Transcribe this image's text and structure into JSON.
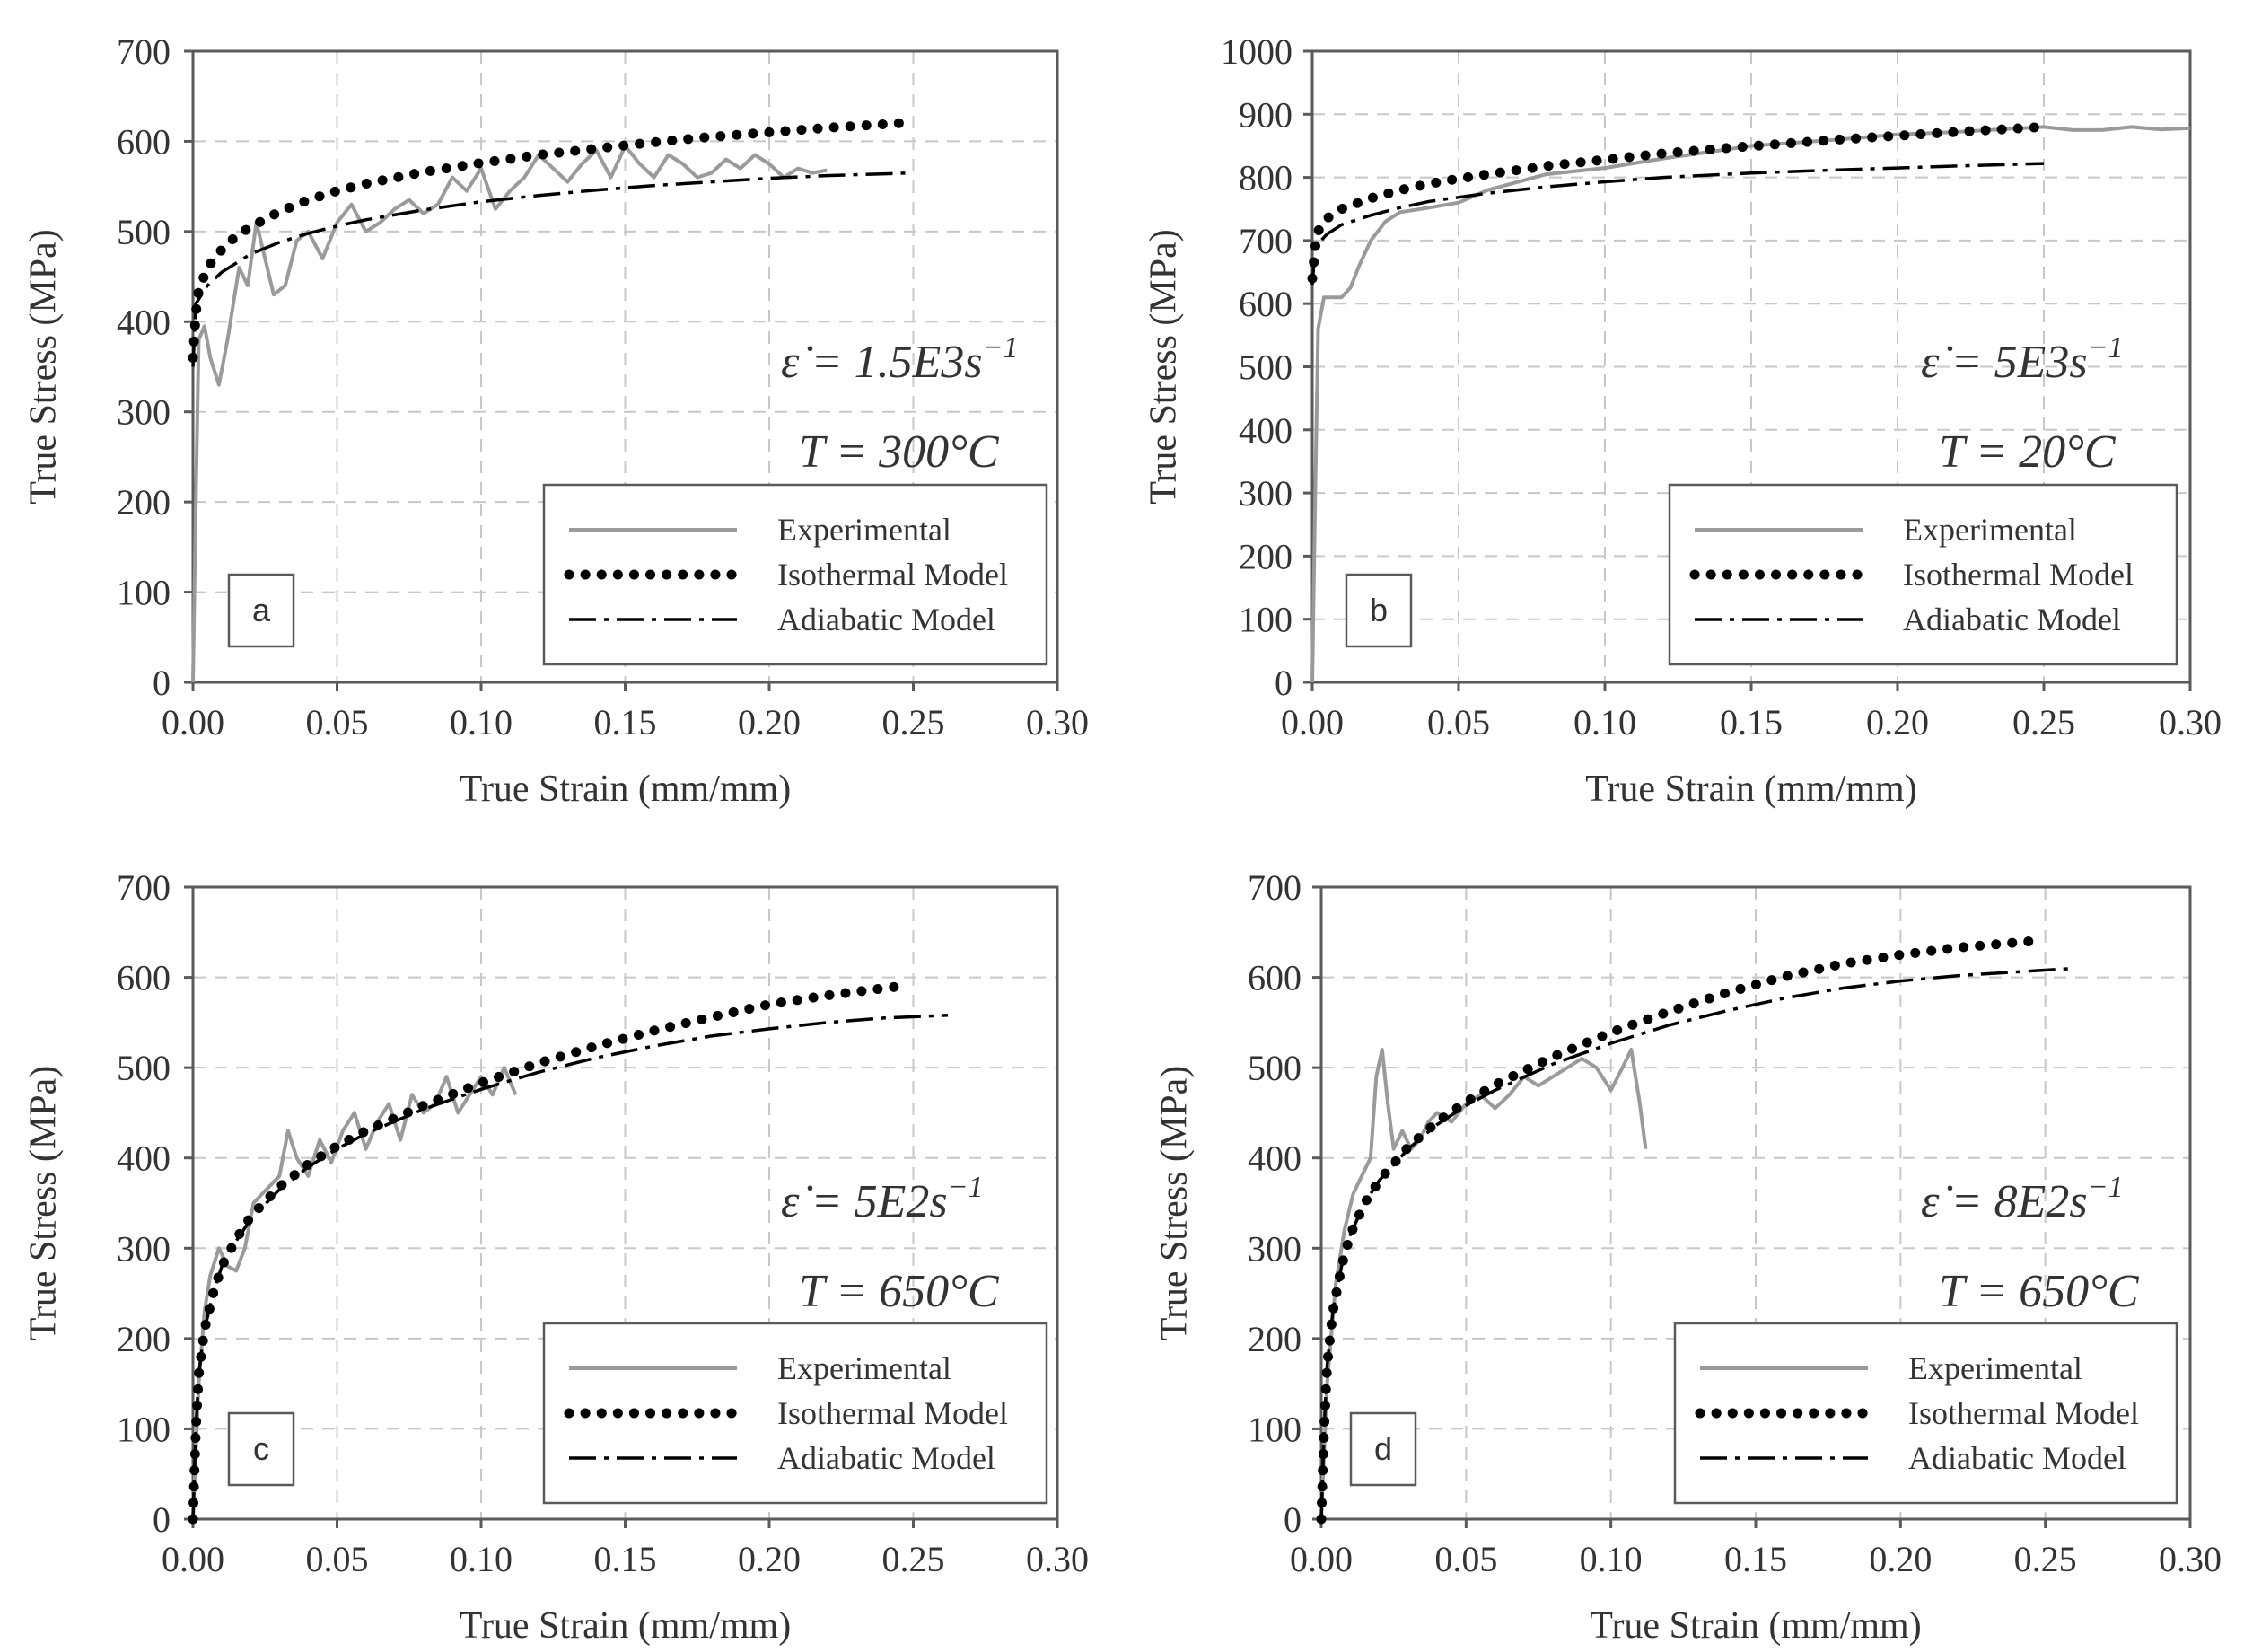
{
  "chart_data": [
    {
      "type": "line",
      "panel_label": "a",
      "xlabel": "True Strain (mm/mm)",
      "ylabel": "True Stress (MPa)",
      "xlim": [
        0,
        0.3
      ],
      "ylim": [
        0,
        700
      ],
      "x_ticks": [
        "0.00",
        "0.05",
        "0.10",
        "0.15",
        "0.20",
        "0.25",
        "0.30"
      ],
      "y_ticks": [
        "0",
        "100",
        "200",
        "300",
        "400",
        "500",
        "600",
        "700"
      ],
      "grid": true,
      "legend_position": "bottom-right",
      "annotation": {
        "rate": "ε̇ = 1.5E3s",
        "rate_sup": "−1",
        "temp": "T = 300°C"
      },
      "series": [
        {
          "name": "Experimental",
          "style": "solid",
          "color": "#9a9a9a",
          "x": [
            0,
            0.001,
            0.002,
            0.004,
            0.006,
            0.009,
            0.012,
            0.016,
            0.019,
            0.022,
            0.025,
            0.028,
            0.032,
            0.036,
            0.04,
            0.045,
            0.05,
            0.055,
            0.06,
            0.065,
            0.07,
            0.075,
            0.08,
            0.085,
            0.09,
            0.095,
            0.1,
            0.105,
            0.11,
            0.115,
            0.12,
            0.125,
            0.13,
            0.135,
            0.14,
            0.145,
            0.15,
            0.155,
            0.16,
            0.165,
            0.17,
            0.175,
            0.18,
            0.185,
            0.19,
            0.195,
            0.2,
            0.205,
            0.21,
            0.215,
            0.22
          ],
          "y": [
            0,
            200,
            380,
            395,
            360,
            330,
            380,
            460,
            440,
            510,
            470,
            430,
            440,
            490,
            500,
            470,
            510,
            530,
            500,
            510,
            525,
            535,
            520,
            530,
            560,
            545,
            570,
            525,
            545,
            560,
            585,
            570,
            555,
            575,
            590,
            560,
            595,
            575,
            560,
            585,
            575,
            560,
            565,
            580,
            570,
            585,
            575,
            560,
            570,
            565,
            568
          ]
        },
        {
          "name": "Isothermal Model",
          "style": "dotted",
          "color": "#000000",
          "x": [
            0,
            0.001,
            0.002,
            0.005,
            0.01,
            0.015,
            0.02,
            0.03,
            0.04,
            0.05,
            0.06,
            0.08,
            0.1,
            0.12,
            0.14,
            0.16,
            0.18,
            0.2,
            0.22,
            0.245
          ],
          "y": [
            360,
            410,
            435,
            460,
            480,
            495,
            505,
            522,
            535,
            545,
            553,
            566,
            576,
            585,
            592,
            599,
            605,
            610,
            615,
            620
          ]
        },
        {
          "name": "Adiabatic Model",
          "style": "dashdot",
          "color": "#000000",
          "x": [
            0,
            0.001,
            0.005,
            0.01,
            0.02,
            0.03,
            0.04,
            0.05,
            0.06,
            0.08,
            0.1,
            0.12,
            0.14,
            0.16,
            0.18,
            0.2,
            0.22,
            0.25
          ],
          "y": [
            350,
            420,
            440,
            455,
            475,
            488,
            498,
            506,
            513,
            524,
            533,
            540,
            546,
            551,
            555,
            559,
            562,
            565
          ]
        }
      ]
    },
    {
      "type": "line",
      "panel_label": "b",
      "xlabel": "True Strain (mm/mm)",
      "ylabel": "True Stress (MPa)",
      "xlim": [
        0,
        0.3
      ],
      "ylim": [
        0,
        1000
      ],
      "x_ticks": [
        "0.00",
        "0.05",
        "0.10",
        "0.15",
        "0.20",
        "0.25",
        "0.30"
      ],
      "y_ticks": [
        "0",
        "100",
        "200",
        "300",
        "400",
        "500",
        "600",
        "700",
        "800",
        "900",
        "1000"
      ],
      "grid": true,
      "legend_position": "bottom-right",
      "annotation": {
        "rate": "ε̇ = 5E3s",
        "rate_sup": "−1",
        "temp": "T = 20°C"
      },
      "series": [
        {
          "name": "Experimental",
          "style": "solid",
          "color": "#9a9a9a",
          "x": [
            0,
            0.001,
            0.002,
            0.004,
            0.007,
            0.01,
            0.013,
            0.016,
            0.02,
            0.025,
            0.03,
            0.04,
            0.05,
            0.06,
            0.08,
            0.1,
            0.12,
            0.15,
            0.18,
            0.2,
            0.22,
            0.25,
            0.26,
            0.27,
            0.28,
            0.29,
            0.3
          ],
          "y": [
            0,
            300,
            560,
            610,
            610,
            610,
            625,
            660,
            700,
            730,
            745,
            752,
            760,
            780,
            805,
            815,
            830,
            850,
            860,
            868,
            872,
            880,
            875,
            875,
            880,
            876,
            878
          ]
        },
        {
          "name": "Isothermal Model",
          "style": "dotted",
          "color": "#000000",
          "x": [
            0,
            0.001,
            0.002,
            0.005,
            0.01,
            0.02,
            0.03,
            0.04,
            0.05,
            0.06,
            0.08,
            0.1,
            0.12,
            0.14,
            0.16,
            0.18,
            0.2,
            0.22,
            0.25
          ],
          "y": [
            640,
            690,
            715,
            735,
            750,
            767,
            780,
            790,
            798,
            805,
            818,
            828,
            838,
            846,
            853,
            860,
            866,
            872,
            880
          ]
        },
        {
          "name": "Adiabatic Model",
          "style": "dashdot",
          "color": "#000000",
          "x": [
            0,
            0.001,
            0.005,
            0.01,
            0.02,
            0.03,
            0.04,
            0.06,
            0.08,
            0.1,
            0.12,
            0.15,
            0.18,
            0.2,
            0.22,
            0.25
          ],
          "y": [
            630,
            690,
            710,
            725,
            740,
            752,
            762,
            775,
            785,
            793,
            800,
            807,
            812,
            815,
            818,
            822
          ]
        }
      ]
    },
    {
      "type": "line",
      "panel_label": "c",
      "xlabel": "True Strain (mm/mm)",
      "ylabel": "True Stress (MPa)",
      "xlim": [
        0,
        0.3
      ],
      "ylim": [
        0,
        700
      ],
      "x_ticks": [
        "0.00",
        "0.05",
        "0.10",
        "0.15",
        "0.20",
        "0.25",
        "0.30"
      ],
      "y_ticks": [
        "0",
        "100",
        "200",
        "300",
        "400",
        "500",
        "600",
        "700"
      ],
      "grid": true,
      "legend_position": "bottom-right",
      "annotation": {
        "rate": "ε̇ = 5E2s",
        "rate_sup": "−1",
        "temp": "T = 650°C"
      },
      "series": [
        {
          "name": "Experimental",
          "style": "solid",
          "color": "#9a9a9a",
          "x": [
            0,
            0.002,
            0.004,
            0.006,
            0.009,
            0.012,
            0.015,
            0.018,
            0.021,
            0.024,
            0.027,
            0.03,
            0.033,
            0.036,
            0.04,
            0.044,
            0.048,
            0.052,
            0.056,
            0.06,
            0.064,
            0.068,
            0.072,
            0.076,
            0.08,
            0.084,
            0.088,
            0.092,
            0.096,
            0.1,
            0.104,
            0.108,
            0.112
          ],
          "y": [
            0,
            150,
            230,
            270,
            300,
            280,
            275,
            300,
            350,
            360,
            370,
            380,
            430,
            400,
            380,
            420,
            395,
            430,
            450,
            410,
            440,
            460,
            420,
            470,
            450,
            460,
            490,
            450,
            470,
            490,
            470,
            500,
            470
          ]
        },
        {
          "name": "Isothermal Model",
          "style": "dotted",
          "color": "#000000",
          "x": [
            0,
            0.001,
            0.002,
            0.004,
            0.007,
            0.01,
            0.015,
            0.02,
            0.03,
            0.04,
            0.05,
            0.06,
            0.08,
            0.1,
            0.12,
            0.14,
            0.16,
            0.18,
            0.2,
            0.22,
            0.245
          ],
          "y": [
            0,
            100,
            160,
            210,
            250,
            280,
            310,
            335,
            368,
            393,
            413,
            430,
            458,
            483,
            505,
            524,
            541,
            556,
            570,
            580,
            590
          ]
        },
        {
          "name": "Adiabatic Model",
          "style": "dashdot",
          "color": "#000000",
          "x": [
            0,
            0.001,
            0.002,
            0.004,
            0.007,
            0.01,
            0.015,
            0.02,
            0.03,
            0.04,
            0.05,
            0.06,
            0.08,
            0.1,
            0.12,
            0.14,
            0.16,
            0.18,
            0.2,
            0.22,
            0.24,
            0.262
          ],
          "y": [
            0,
            100,
            160,
            210,
            250,
            280,
            308,
            332,
            365,
            390,
            410,
            427,
            454,
            476,
            495,
            511,
            524,
            535,
            543,
            550,
            555,
            558
          ]
        }
      ]
    },
    {
      "type": "line",
      "panel_label": "d",
      "xlabel": "True Strain (mm/mm)",
      "ylabel": "True Stress (MPa)",
      "xlim": [
        0,
        0.3
      ],
      "ylim": [
        0,
        700
      ],
      "x_ticks": [
        "0.00",
        "0.05",
        "0.10",
        "0.15",
        "0.20",
        "0.25",
        "0.30"
      ],
      "y_ticks": [
        "0",
        "100",
        "200",
        "300",
        "400",
        "500",
        "600",
        "700"
      ],
      "grid": true,
      "legend_position": "bottom-right",
      "annotation": {
        "rate": "ε̇ = 8E2s",
        "rate_sup": "−1",
        "temp": "T = 650°C"
      },
      "series": [
        {
          "name": "Experimental",
          "style": "solid",
          "color": "#9a9a9a",
          "x": [
            0,
            0.002,
            0.005,
            0.008,
            0.011,
            0.014,
            0.017,
            0.019,
            0.021,
            0.023,
            0.025,
            0.028,
            0.031,
            0.034,
            0.037,
            0.04,
            0.045,
            0.05,
            0.055,
            0.06,
            0.065,
            0.07,
            0.075,
            0.08,
            0.085,
            0.09,
            0.095,
            0.1,
            0.104,
            0.107,
            0.11,
            0.112
          ],
          "y": [
            0,
            150,
            260,
            320,
            360,
            380,
            400,
            490,
            520,
            460,
            410,
            430,
            410,
            420,
            440,
            450,
            440,
            460,
            470,
            455,
            470,
            490,
            480,
            490,
            500,
            510,
            500,
            475,
            500,
            520,
            460,
            410
          ]
        },
        {
          "name": "Isothermal Model",
          "style": "dotted",
          "color": "#000000",
          "x": [
            0,
            0.001,
            0.002,
            0.004,
            0.007,
            0.01,
            0.015,
            0.02,
            0.03,
            0.04,
            0.05,
            0.06,
            0.08,
            0.1,
            0.12,
            0.14,
            0.16,
            0.18,
            0.2,
            0.22,
            0.245
          ],
          "y": [
            0,
            100,
            170,
            230,
            280,
            315,
            350,
            375,
            412,
            440,
            462,
            481,
            512,
            539,
            562,
            583,
            601,
            615,
            625,
            633,
            640
          ]
        },
        {
          "name": "Adiabatic Model",
          "style": "dashdot",
          "color": "#000000",
          "x": [
            0,
            0.001,
            0.002,
            0.004,
            0.007,
            0.01,
            0.015,
            0.02,
            0.03,
            0.04,
            0.05,
            0.06,
            0.08,
            0.1,
            0.12,
            0.14,
            0.16,
            0.18,
            0.2,
            0.22,
            0.24,
            0.26
          ],
          "y": [
            0,
            100,
            170,
            230,
            280,
            315,
            350,
            375,
            410,
            437,
            458,
            475,
            504,
            527,
            547,
            563,
            577,
            588,
            596,
            602,
            606,
            610
          ]
        }
      ]
    }
  ]
}
